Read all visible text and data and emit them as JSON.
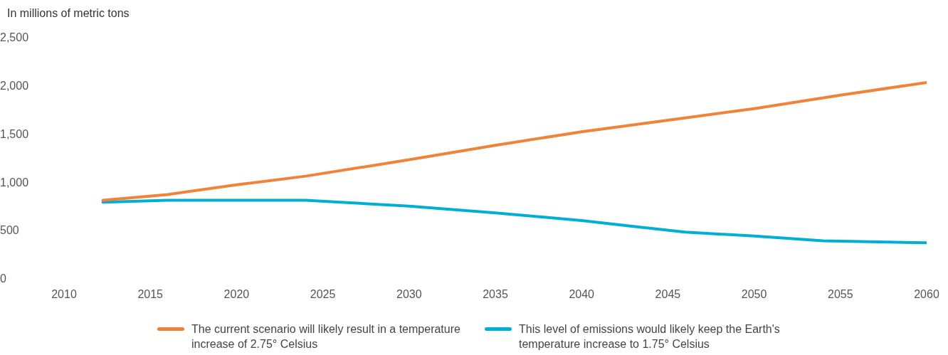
{
  "chart_data": {
    "type": "line",
    "ylabel": "In millions of metric tons",
    "xlim": [
      2010,
      2060
    ],
    "xticks": [
      2010,
      2015,
      2020,
      2025,
      2030,
      2035,
      2040,
      2045,
      2050,
      2055,
      2060
    ],
    "ylim": [
      0,
      2500
    ],
    "yticks": [
      0,
      500,
      {
        "value": 1000,
        "label": "1,000"
      },
      {
        "value": 1500,
        "label": "1,500"
      },
      {
        "value": 2000,
        "label": "2,000"
      },
      {
        "value": 2500,
        "label": "2,500"
      }
    ],
    "grid": false,
    "legend": "bottom",
    "marker": "none",
    "line_style": "solid",
    "series": [
      {
        "name": "The current scenario will likely result in a temperature increase of 2.75° Celsius",
        "color": "#f0833a",
        "x": [
          2012.25,
          2016,
          2020,
          2024,
          2030,
          2035,
          2040,
          2045,
          2050,
          2055,
          2060
        ],
        "values": [
          820,
          880,
          980,
          1070,
          1240,
          1390,
          1530,
          1650,
          1770,
          1910,
          2040
        ]
      },
      {
        "name": "This level of emissions would likely keep the Earth's temperature increase to 1.75° Celsius",
        "color": "#00b0d4",
        "x": [
          2012.25,
          2016,
          2020,
          2024,
          2030,
          2035,
          2040,
          2043,
          2046,
          2050,
          2054,
          2060
        ],
        "values": [
          800,
          820,
          820,
          820,
          760,
          690,
          610,
          550,
          490,
          450,
          400,
          380
        ]
      }
    ]
  }
}
